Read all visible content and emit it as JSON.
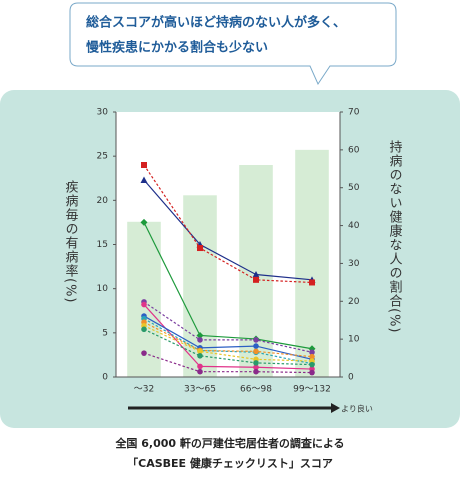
{
  "callout": [
    "総合スコアが高いほど持病のない人が多く、",
    "慢性疾患にかかる割合も少ない"
  ],
  "caption": [
    "全国 6,000 軒の戸建住宅居住者の調査による",
    "「CASBEE 健康チェックリスト」スコア"
  ],
  "chart_data": {
    "type": "combo",
    "ylabel": "疾病毎の有病率(%)",
    "y2label": "持病のない健康な人の割合(%)",
    "arrow_label": "より良い",
    "categories": [
      "～32",
      "33～65",
      "66～98",
      "99～132"
    ],
    "ylim": [
      0,
      30
    ],
    "yticks": [
      0,
      5,
      10,
      15,
      20,
      25,
      30
    ],
    "y2lim": [
      0,
      70
    ],
    "y2ticks": [
      0,
      10,
      20,
      30,
      40,
      50,
      60,
      70
    ],
    "series": [
      {
        "type": "bar",
        "axis": "y2",
        "color": "#d6ecd5",
        "values": [
          41,
          48,
          56,
          60
        ]
      },
      {
        "type": "line",
        "color": "#1e2f8a",
        "dash": false,
        "marker": "triangle",
        "values": [
          22.3,
          15,
          11.6,
          11
        ]
      },
      {
        "type": "line",
        "color": "#d42020",
        "dash": true,
        "marker": "square",
        "values": [
          24,
          14.6,
          11,
          10.7
        ]
      },
      {
        "type": "line",
        "color": "#1e9a3c",
        "dash": false,
        "marker": "diamond",
        "values": [
          17.5,
          4.7,
          4.3,
          3.2
        ]
      },
      {
        "type": "line",
        "color": "#7a3fa0",
        "dash": true,
        "marker": "circle",
        "values": [
          8.5,
          4.2,
          4.2,
          2.8
        ]
      },
      {
        "type": "line",
        "color": "#e0338a",
        "dash": false,
        "marker": "circle",
        "values": [
          8.2,
          1.2,
          1.1,
          0.9
        ]
      },
      {
        "type": "line",
        "color": "#2b5fc4",
        "dash": false,
        "marker": "circle",
        "values": [
          6.9,
          3.3,
          3.5,
          2
        ]
      },
      {
        "type": "line",
        "color": "#2aa6b8",
        "dash": true,
        "marker": "circle",
        "values": [
          6.6,
          3,
          2.8,
          1.5
        ]
      },
      {
        "type": "line",
        "color": "#f0902a",
        "dash": true,
        "marker": "circle",
        "values": [
          6.2,
          3,
          2.9,
          2.3
        ]
      },
      {
        "type": "line",
        "color": "#e8c62a",
        "dash": true,
        "marker": "circle",
        "values": [
          5.8,
          2.9,
          2,
          1.8
        ]
      },
      {
        "type": "line",
        "color": "#2a9a6a",
        "dash": true,
        "marker": "circle",
        "values": [
          5.4,
          2.4,
          1.6,
          1.4
        ]
      },
      {
        "type": "line",
        "color": "#8a2a8a",
        "dash": true,
        "marker": "circle",
        "values": [
          2.7,
          0.6,
          0.6,
          0.5
        ]
      }
    ]
  }
}
